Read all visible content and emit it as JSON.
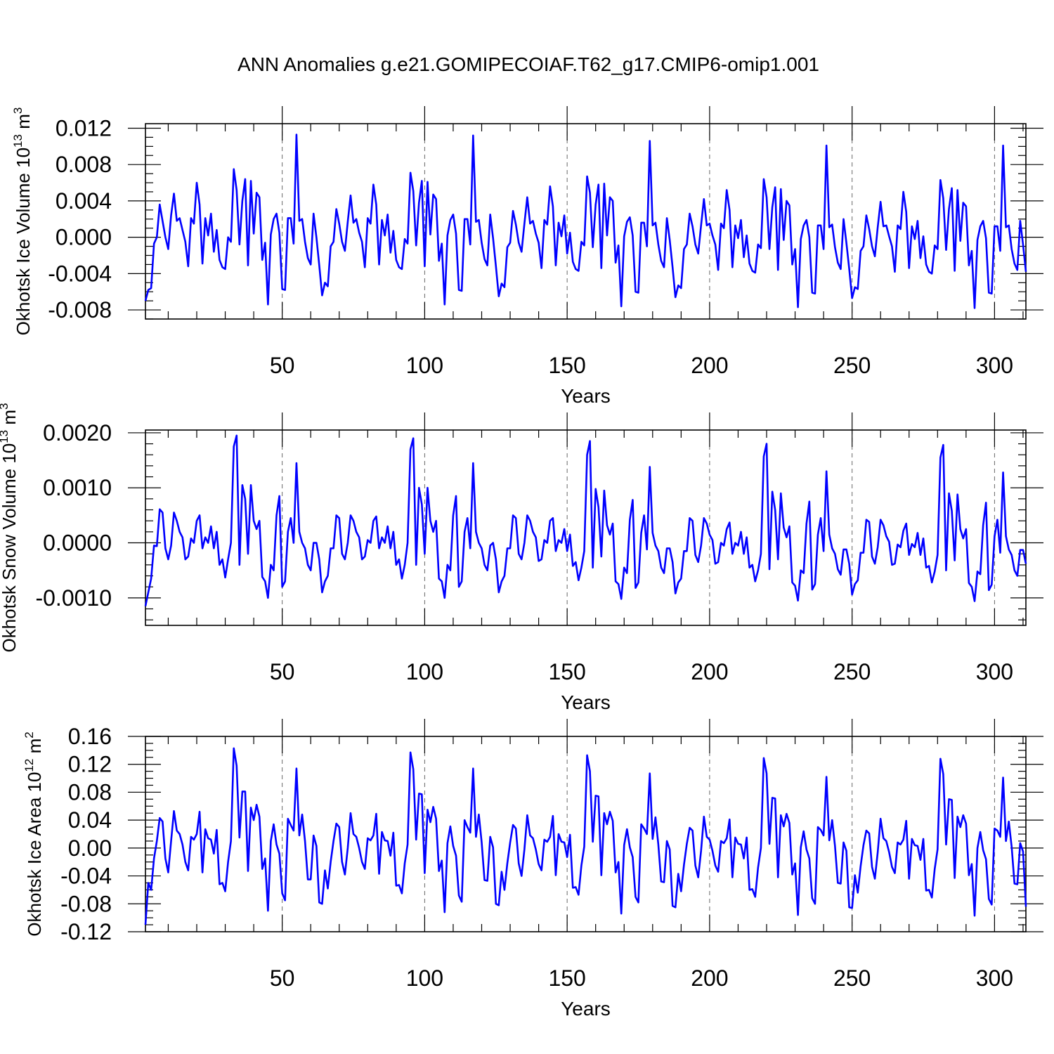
{
  "title": "ANN Anomalies g.e21.GOMIPECOIAF.T62_g17.CMIP6-omip1.001",
  "colors": {
    "series": "#0000ff",
    "grid": "#666666",
    "axis": "#000000"
  },
  "chart_data": [
    {
      "type": "line",
      "panel": "ice-volume",
      "ylabel": "Okhotsk Ice Volume 10",
      "ylabel_exp": "13",
      "ylabel_unit": " m",
      "ylabel_unit_exp": "3",
      "xlabel": "Years",
      "xlim": [
        2,
        311
      ],
      "ylim": [
        -0.009,
        0.0125
      ],
      "xticks": [
        50,
        100,
        150,
        200,
        250,
        300
      ],
      "xtick_labels": [
        "50",
        "100",
        "150",
        "200",
        "250",
        "300"
      ],
      "yticks": [
        -0.008,
        -0.004,
        0.0,
        0.004,
        0.008,
        0.012
      ],
      "ytick_labels": [
        "-0.008",
        "-0.004",
        "0.000",
        "0.004",
        "0.008",
        "0.012"
      ],
      "yminor": 0.001,
      "x_start": 2,
      "values": [
        -0.007,
        -0.0058,
        -0.0056,
        -0.0007,
        0.0,
        0.0036,
        0.0018,
        0.0,
        -0.0013,
        0.0024,
        0.0048,
        0.0018,
        0.0021,
        0.0008,
        -0.0005,
        -0.0032,
        0.0021,
        0.0015,
        0.006,
        0.0036,
        -0.0029,
        0.0021,
        0.0002,
        0.0026,
        -0.0016,
        0.0008,
        -0.0025,
        -0.0033,
        -0.0035,
        0.0,
        -0.0005,
        0.0075,
        0.0052,
        -0.0008,
        0.004,
        0.0064,
        -0.0031,
        0.0062,
        0.0004,
        0.0049,
        0.0044,
        -0.0025,
        -0.0006,
        -0.0074,
        0.0003,
        0.002,
        0.0026,
        0.0005,
        -0.0057,
        -0.0058,
        0.0021,
        0.0021,
        -0.0007,
        0.0113,
        0.0018,
        0.002,
        -0.0005,
        -0.0023,
        -0.003,
        0.0026,
        0.0,
        -0.0031,
        -0.0064,
        -0.005,
        -0.0054,
        -0.001,
        -0.0005,
        0.0031,
        0.0015,
        -0.0005,
        -0.0015,
        0.0017,
        0.0046,
        0.0016,
        0.002,
        0.0005,
        -0.0005,
        -0.0033,
        0.0021,
        0.0015,
        0.0058,
        0.0036,
        -0.003,
        0.0019,
        0.0002,
        0.0025,
        -0.0017,
        0.0007,
        -0.0025,
        -0.0033,
        -0.0035,
        -0.0002,
        -0.0007,
        0.0071,
        0.0051,
        -0.0009,
        0.0038,
        0.0062,
        -0.0032,
        0.0061,
        0.0003,
        0.0047,
        0.0042,
        -0.0026,
        -0.0007,
        -0.0074,
        0.0002,
        0.0019,
        0.0025,
        0.0004,
        -0.0058,
        -0.0059,
        0.002,
        0.002,
        -0.0008,
        0.0112,
        0.0017,
        0.0019,
        -0.0006,
        -0.0024,
        -0.0031,
        0.0025,
        -0.0001,
        -0.0032,
        -0.0065,
        -0.0051,
        -0.0055,
        -0.0011,
        -0.0006,
        0.0029,
        0.0014,
        -0.0006,
        -0.0016,
        0.0015,
        0.0044,
        0.0015,
        0.0018,
        0.0004,
        -0.0006,
        -0.0034,
        0.0019,
        0.0014,
        0.0056,
        0.0034,
        -0.0031,
        0.0016,
        0.0001,
        0.0024,
        -0.0018,
        0.0005,
        -0.0027,
        -0.0035,
        -0.0037,
        -0.0005,
        -0.0009,
        0.0067,
        0.0049,
        -0.0011,
        0.0036,
        0.0058,
        -0.0034,
        0.0059,
        0.0002,
        0.0044,
        0.004,
        -0.0028,
        -0.0009,
        -0.0076,
        0.0001,
        0.0017,
        0.0022,
        0.0002,
        -0.006,
        -0.0061,
        0.0016,
        0.0016,
        -0.001,
        0.0106,
        0.0013,
        0.0016,
        -0.0008,
        -0.0026,
        -0.0033,
        0.0021,
        -0.0003,
        -0.0033,
        -0.0066,
        -0.0053,
        -0.0056,
        -0.0013,
        -0.0008,
        0.0026,
        0.0012,
        -0.0008,
        -0.0018,
        0.0013,
        0.0042,
        0.0013,
        0.0015,
        0.0002,
        -0.0008,
        -0.0036,
        0.0015,
        0.001,
        0.0052,
        0.003,
        -0.0033,
        0.0013,
        -0.0001,
        0.0019,
        -0.0022,
        0.0002,
        -0.0029,
        -0.0037,
        -0.0039,
        -0.0008,
        -0.0012,
        0.0064,
        0.0044,
        -0.0013,
        0.0033,
        0.0055,
        -0.0036,
        0.0053,
        -0.0003,
        0.004,
        0.0035,
        -0.003,
        -0.0013,
        -0.0077,
        -0.0002,
        0.0013,
        0.0019,
        0.0,
        -0.0061,
        -0.0062,
        0.0013,
        0.0013,
        -0.0013,
        0.0101,
        0.0011,
        0.0014,
        -0.0011,
        -0.0028,
        -0.0035,
        0.002,
        -0.0006,
        -0.0035,
        -0.0067,
        -0.0055,
        -0.0057,
        -0.0015,
        -0.001,
        0.0024,
        0.0009,
        -0.001,
        -0.0021,
        0.0011,
        0.0039,
        0.0012,
        0.0013,
        0.0001,
        -0.001,
        -0.0038,
        0.0013,
        0.0009,
        0.005,
        0.0028,
        -0.0034,
        0.0012,
        -0.0002,
        0.0018,
        -0.0023,
        0.0001,
        -0.003,
        -0.0038,
        -0.004,
        -0.0009,
        -0.0013,
        0.0063,
        0.0043,
        -0.0014,
        0.0031,
        0.0054,
        -0.0037,
        0.0052,
        -0.0004,
        0.0038,
        0.0034,
        -0.0031,
        -0.0015,
        -0.0078,
        -0.0003,
        0.0012,
        0.0018,
        -0.0001,
        -0.0061,
        -0.0062,
        0.0012,
        0.0012,
        -0.0015,
        0.0101,
        0.0011,
        0.0013,
        -0.0013,
        -0.0029,
        -0.0036,
        0.0018,
        -0.0008,
        -0.0038
      ]
    },
    {
      "type": "line",
      "panel": "snow-volume",
      "ylabel": "Okhotsk Snow Volume 10",
      "ylabel_exp": "13",
      "ylabel_unit": " m",
      "ylabel_unit_exp": "3",
      "xlabel": "Years",
      "xlim": [
        2,
        311
      ],
      "ylim": [
        -0.0015,
        0.00205
      ],
      "xticks": [
        50,
        100,
        150,
        200,
        250,
        300
      ],
      "xtick_labels": [
        "50",
        "100",
        "150",
        "200",
        "250",
        "300"
      ],
      "yticks": [
        -0.001,
        0.0,
        0.001,
        0.002
      ],
      "ytick_labels": [
        "-0.0010",
        "0.0000",
        "0.0010",
        "0.0020"
      ],
      "yminor": 0.0002,
      "x_start": 2,
      "values": [
        -0.00115,
        -0.0009,
        -0.00065,
        -5e-05,
        -6e-05,
        0.00061,
        0.00055,
        -0.0001,
        -0.0003,
        -5e-05,
        0.00055,
        0.0004,
        0.0002,
        0.0001,
        -0.0003,
        -0.00025,
        8e-05,
        0.0,
        0.0004,
        0.0005,
        -0.0001,
        0.0001,
        0.0,
        0.0003,
        -0.0001,
        0.0002,
        -0.0004,
        -0.0003,
        -0.00063,
        -0.0003,
        0.0,
        0.00175,
        0.00195,
        -0.0004,
        0.00105,
        0.0008,
        -0.0002,
        0.00105,
        0.0004,
        0.00025,
        0.0004,
        -0.00062,
        -0.0007,
        -0.001,
        -0.0004,
        -0.0005,
        0.0005,
        0.00085,
        -0.0008,
        -0.0007,
        0.0002,
        0.00045,
        0.0,
        0.00145,
        0.0002,
        0.0,
        -0.0001,
        -0.0004,
        -0.0005,
        0.0,
        0.0,
        -0.0003,
        -0.0009,
        -0.0007,
        -0.0006,
        -0.0001,
        -0.0001,
        0.0005,
        0.00045,
        -0.0002,
        -0.0003,
        0.0,
        0.0005,
        0.0004,
        0.0002,
        0.0001,
        -0.0003,
        -0.00025,
        5e-05,
        0.0,
        0.0004,
        0.00048,
        -0.0001,
        0.0001,
        0.0,
        0.0003,
        -0.0001,
        0.0002,
        -0.0004,
        -0.0003,
        -0.00065,
        -0.0004,
        0.0,
        0.0017,
        0.0019,
        -0.0004,
        0.001,
        0.0007,
        -0.0002,
        0.001,
        0.0004,
        0.0002,
        0.0004,
        -0.00065,
        -0.0007,
        -0.001,
        -0.0004,
        -0.0005,
        0.0005,
        0.00085,
        -0.0008,
        -0.0007,
        0.0002,
        0.00045,
        -0.0001,
        0.00145,
        0.0002,
        0.0,
        -0.0001,
        -0.0004,
        -0.0005,
        -5e-05,
        0.0,
        -0.0003,
        -0.0009,
        -0.0007,
        -0.0006,
        -0.0001,
        -0.0001,
        0.0005,
        0.00045,
        -0.0002,
        -0.0003,
        0.0,
        0.0005,
        0.0004,
        0.0002,
        0.0001,
        -0.00033,
        -0.0003,
        5e-05,
        0.0,
        0.0004,
        0.00045,
        -0.00015,
        5e-05,
        0.0,
        0.00025,
        -0.00015,
        0.00015,
        -0.00042,
        -0.00035,
        -0.00068,
        -0.00045,
        -0.00015,
        0.0016,
        0.00185,
        -0.00045,
        0.00098,
        0.00065,
        -0.00025,
        0.00095,
        0.00032,
        0.00015,
        0.00035,
        -0.0007,
        -0.00075,
        -0.00102,
        -0.00045,
        -0.00055,
        0.00042,
        0.00078,
        -0.00082,
        -0.00072,
        0.00018,
        0.0005,
        -0.00012,
        0.00138,
        0.00018,
        -5e-05,
        -0.00015,
        -0.00045,
        -0.00055,
        -0.0001,
        -0.0001,
        -0.00035,
        -0.00092,
        -0.00072,
        -0.00065,
        -0.00015,
        -0.00015,
        0.00045,
        0.0004,
        -0.00022,
        -0.00035,
        -5e-05,
        0.00045,
        0.00035,
        0.00015,
        5e-05,
        -0.00038,
        -0.00035,
        0.0,
        -5e-05,
        0.00025,
        0.00037,
        -0.0002,
        0.0,
        -5e-05,
        0.0002,
        -0.0002,
        0.0001,
        -0.00045,
        -0.0004,
        -0.0007,
        -0.0005,
        -0.0002,
        0.00157,
        0.0018,
        -0.00048,
        0.00093,
        0.0006,
        -0.0003,
        0.0009,
        0.00028,
        0.0001,
        0.0003,
        -0.00072,
        -0.00078,
        -0.00105,
        -0.0005,
        -0.00055,
        0.00035,
        0.00075,
        -0.00085,
        -0.00075,
        0.00015,
        0.00045,
        -0.00015,
        0.0013,
        0.00015,
        -0.0001,
        -0.0002,
        -0.00048,
        -0.00058,
        -0.00012,
        -0.00012,
        -0.00038,
        -0.00094,
        -0.00075,
        -0.00068,
        -0.00018,
        -0.00018,
        0.00042,
        0.00038,
        -0.00025,
        -0.00038,
        -8e-05,
        0.00042,
        0.00032,
        0.00012,
        2e-05,
        -0.0004,
        -0.00038,
        -3e-05,
        -8e-05,
        0.00022,
        0.00035,
        -0.00022,
        -2e-05,
        -8e-05,
        0.00018,
        -0.00022,
        8e-05,
        -0.00045,
        -0.00042,
        -0.00072,
        -0.00052,
        -0.00022,
        0.00155,
        0.00178,
        -0.0005,
        0.0009,
        0.00058,
        -0.00032,
        0.00088,
        0.00025,
        8e-05,
        0.00025,
        -0.00073,
        -0.0008,
        -0.00106,
        -0.00052,
        -0.00057,
        0.00032,
        0.00073,
        -0.00086,
        -0.00076,
        0.00012,
        0.00042,
        -0.00018,
        0.00128,
        0.00012,
        -0.00012,
        -0.00022,
        -0.0005,
        -0.0006,
        -0.00013,
        -0.00013,
        -0.00038
      ]
    },
    {
      "type": "line",
      "panel": "ice-area",
      "ylabel": "Okhotsk Ice Area 10",
      "ylabel_exp": "12",
      "ylabel_unit": " m",
      "ylabel_unit_exp": "2",
      "xlabel": "Years",
      "xlim": [
        2,
        311
      ],
      "ylim": [
        -0.12,
        0.16
      ],
      "xticks": [
        50,
        100,
        150,
        200,
        250,
        300
      ],
      "xtick_labels": [
        "50",
        "100",
        "150",
        "200",
        "250",
        "300"
      ],
      "yticks": [
        -0.12,
        -0.08,
        -0.04,
        0.0,
        0.04,
        0.08,
        0.12,
        0.16
      ],
      "ytick_labels": [
        "-0.12",
        "-0.08",
        "-0.04",
        "0.00",
        "0.04",
        "0.08",
        "0.12",
        "0.16"
      ],
      "yminor": 0.01,
      "x_start": 2,
      "values": [
        -0.11,
        -0.05,
        -0.06,
        -0.015,
        0.01,
        0.043,
        0.038,
        -0.015,
        -0.035,
        0.01,
        0.053,
        0.025,
        0.02,
        0.005,
        -0.02,
        -0.032,
        0.016,
        0.012,
        0.02,
        0.052,
        -0.035,
        0.027,
        0.014,
        0.012,
        -0.008,
        0.026,
        -0.052,
        -0.05,
        -0.062,
        -0.02,
        0.01,
        0.143,
        0.118,
        0.015,
        0.081,
        0.081,
        -0.033,
        0.058,
        0.04,
        0.062,
        0.045,
        -0.03,
        -0.015,
        -0.09,
        0.01,
        0.034,
        0.005,
        -0.008,
        -0.065,
        -0.075,
        0.042,
        0.033,
        0.025,
        0.114,
        0.018,
        0.048,
        0.01,
        -0.045,
        -0.045,
        0.018,
        0.003,
        -0.078,
        -0.08,
        -0.032,
        -0.058,
        -0.02,
        0.01,
        0.035,
        0.03,
        -0.02,
        -0.038,
        0.0,
        0.05,
        0.02,
        0.016,
        0.0,
        -0.02,
        -0.03,
        0.014,
        0.011,
        0.018,
        0.049,
        -0.037,
        0.023,
        0.011,
        0.01,
        -0.011,
        0.022,
        -0.054,
        -0.053,
        -0.065,
        -0.022,
        0.005,
        0.137,
        0.113,
        0.012,
        0.078,
        0.077,
        -0.036,
        0.055,
        0.037,
        0.059,
        0.042,
        -0.033,
        -0.018,
        -0.092,
        0.007,
        0.031,
        0.003,
        -0.011,
        -0.068,
        -0.077,
        0.04,
        0.03,
        0.022,
        0.114,
        0.016,
        0.048,
        0.008,
        -0.046,
        -0.047,
        0.016,
        0.001,
        -0.08,
        -0.082,
        -0.034,
        -0.06,
        -0.022,
        0.008,
        0.033,
        0.028,
        -0.022,
        -0.04,
        -0.002,
        0.047,
        0.018,
        0.014,
        -0.002,
        -0.023,
        -0.032,
        0.012,
        0.009,
        0.016,
        0.046,
        -0.039,
        0.02,
        0.009,
        0.008,
        -0.013,
        0.019,
        -0.057,
        -0.056,
        -0.067,
        -0.025,
        0.002,
        0.133,
        0.11,
        0.009,
        0.075,
        0.074,
        -0.039,
        0.05,
        0.034,
        0.052,
        0.039,
        -0.035,
        -0.02,
        -0.094,
        0.004,
        0.027,
        0.001,
        -0.013,
        -0.07,
        -0.078,
        0.034,
        0.028,
        0.02,
        0.107,
        0.013,
        0.044,
        0.005,
        -0.048,
        -0.049,
        0.01,
        -0.002,
        -0.083,
        -0.085,
        -0.037,
        -0.062,
        -0.024,
        0.006,
        0.029,
        0.025,
        -0.025,
        -0.042,
        -0.004,
        0.045,
        0.016,
        0.012,
        -0.004,
        -0.025,
        -0.034,
        0.01,
        0.007,
        0.014,
        0.041,
        -0.042,
        0.015,
        0.006,
        0.005,
        -0.015,
        0.015,
        -0.06,
        -0.059,
        -0.07,
        -0.028,
        0.0,
        0.129,
        0.107,
        0.006,
        0.072,
        0.071,
        -0.042,
        0.047,
        0.031,
        0.049,
        0.036,
        -0.038,
        -0.022,
        -0.096,
        0.001,
        0.024,
        -0.002,
        -0.015,
        -0.072,
        -0.08,
        0.03,
        0.026,
        0.018,
        0.102,
        0.011,
        0.04,
        0.003,
        -0.05,
        -0.051,
        0.008,
        -0.004,
        -0.085,
        -0.086,
        -0.039,
        -0.064,
        -0.026,
        0.004,
        0.025,
        0.021,
        -0.027,
        -0.044,
        -0.006,
        0.042,
        0.014,
        0.01,
        -0.006,
        -0.027,
        -0.036,
        0.008,
        0.005,
        0.012,
        0.039,
        -0.044,
        0.013,
        0.004,
        0.003,
        -0.017,
        0.013,
        -0.061,
        -0.06,
        -0.071,
        -0.03,
        -0.002,
        0.128,
        0.106,
        0.005,
        0.07,
        0.069,
        -0.043,
        0.045,
        0.03,
        0.047,
        0.035,
        -0.039,
        -0.023,
        -0.097,
        0.0,
        0.023,
        -0.003,
        -0.016,
        -0.073,
        -0.081,
        0.028,
        0.025,
        0.016,
        0.101,
        0.01,
        0.038,
        0.002,
        -0.051,
        -0.052,
        0.007,
        -0.005,
        -0.084
      ]
    }
  ]
}
